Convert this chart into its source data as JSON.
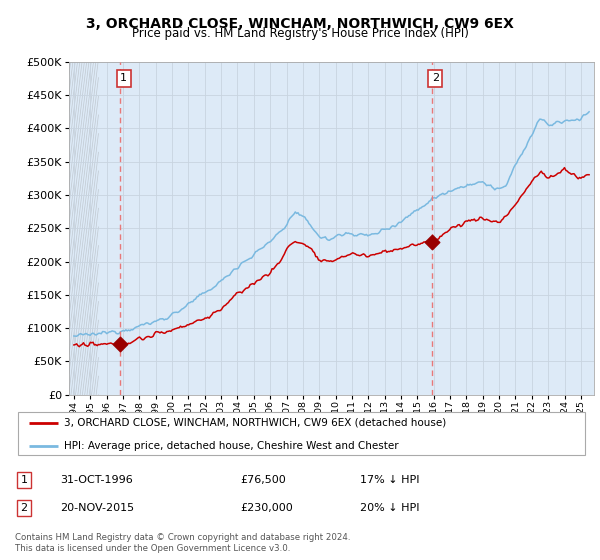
{
  "title": "3, ORCHARD CLOSE, WINCHAM, NORTHWICH, CW9 6EX",
  "subtitle": "Price paid vs. HM Land Registry's House Price Index (HPI)",
  "legend_line1": "3, ORCHARD CLOSE, WINCHAM, NORTHWICH, CW9 6EX (detached house)",
  "legend_line2": "HPI: Average price, detached house, Cheshire West and Chester",
  "annotation1_label": "1",
  "annotation1_date": "31-OCT-1996",
  "annotation1_price": "£76,500",
  "annotation1_hpi": "17% ↓ HPI",
  "annotation2_label": "2",
  "annotation2_date": "20-NOV-2015",
  "annotation2_price": "£230,000",
  "annotation2_hpi": "20% ↓ HPI",
  "footer": "Contains HM Land Registry data © Crown copyright and database right 2024.\nThis data is licensed under the Open Government Licence v3.0.",
  "hpi_color": "#7ab9e0",
  "price_color": "#cc0000",
  "marker_color": "#990000",
  "dashed_line_color": "#e87878",
  "bg_color": "#ddeaf7",
  "hatch_color": "#c0c8d0",
  "grid_color": "#c8d4e0",
  "ylim": [
    0,
    500000
  ],
  "yticks": [
    0,
    50000,
    100000,
    150000,
    200000,
    250000,
    300000,
    350000,
    400000,
    450000,
    500000
  ],
  "sale1_x": 1996.83,
  "sale1_y": 76500,
  "sale2_x": 2015.88,
  "sale2_y": 230000,
  "xlim_start": 1993.7,
  "xlim_end": 2025.8
}
